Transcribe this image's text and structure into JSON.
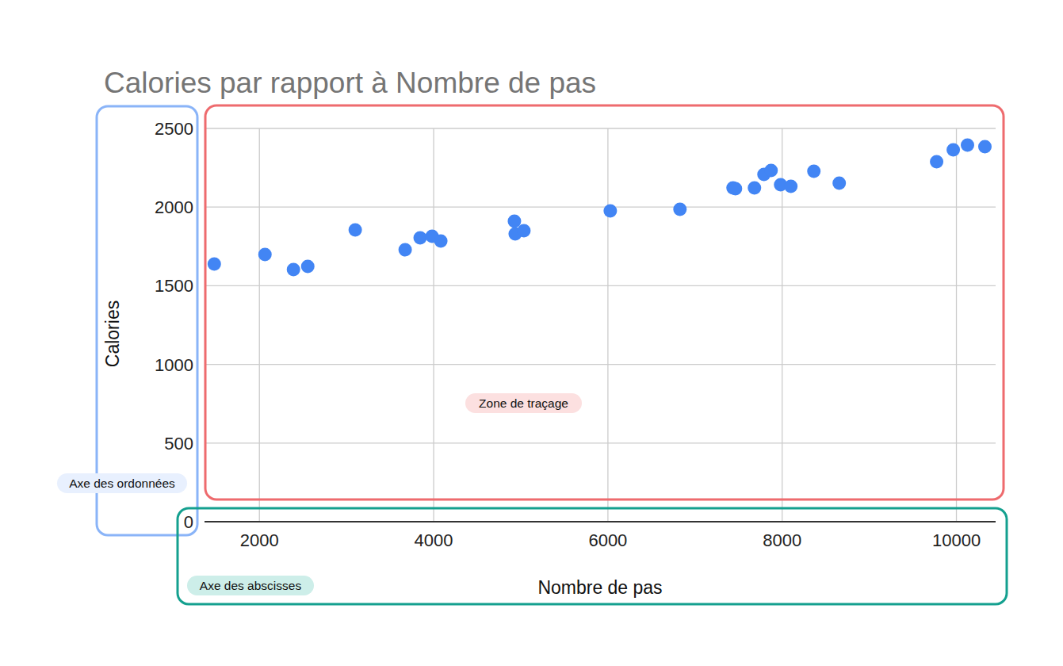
{
  "chart_data": {
    "type": "scatter",
    "title": "Calories par rapport à Nombre de pas",
    "x_label": "Nombre de pas",
    "y_label": "Calories",
    "x": [
      1482,
      2064,
      2391,
      2555,
      3100,
      3673,
      3845,
      3982,
      4082,
      4927,
      4936,
      5036,
      6027,
      6827,
      7436,
      7464,
      7682,
      7791,
      7873,
      7982,
      8100,
      8364,
      8655,
      9773,
      9964,
      10127,
      10327
    ],
    "values": [
      1638,
      1699,
      1603,
      1623,
      1855,
      1729,
      1804,
      1815,
      1784,
      1910,
      1830,
      1850,
      1976,
      1986,
      2122,
      2117,
      2122,
      2208,
      2233,
      2142,
      2132,
      2228,
      2152,
      2288,
      2364,
      2394,
      2384
    ],
    "color": "#4285f4",
    "marker": "circle",
    "xlim": [
      1370,
      10450
    ],
    "xticks": [
      2000,
      4000,
      6000,
      8000,
      10000
    ],
    "ylim": [
      0,
      2500
    ],
    "yticks": [
      0,
      500,
      1000,
      1500,
      2000,
      2500
    ],
    "grid": true,
    "annotations": [
      {
        "text": "Axe des ordonnées",
        "color": "#8ab4f8"
      },
      {
        "text": "Zone de traçage",
        "color": "#ee6b6e"
      },
      {
        "text": "Axe des abscisses",
        "color": "#14a08f"
      }
    ]
  }
}
